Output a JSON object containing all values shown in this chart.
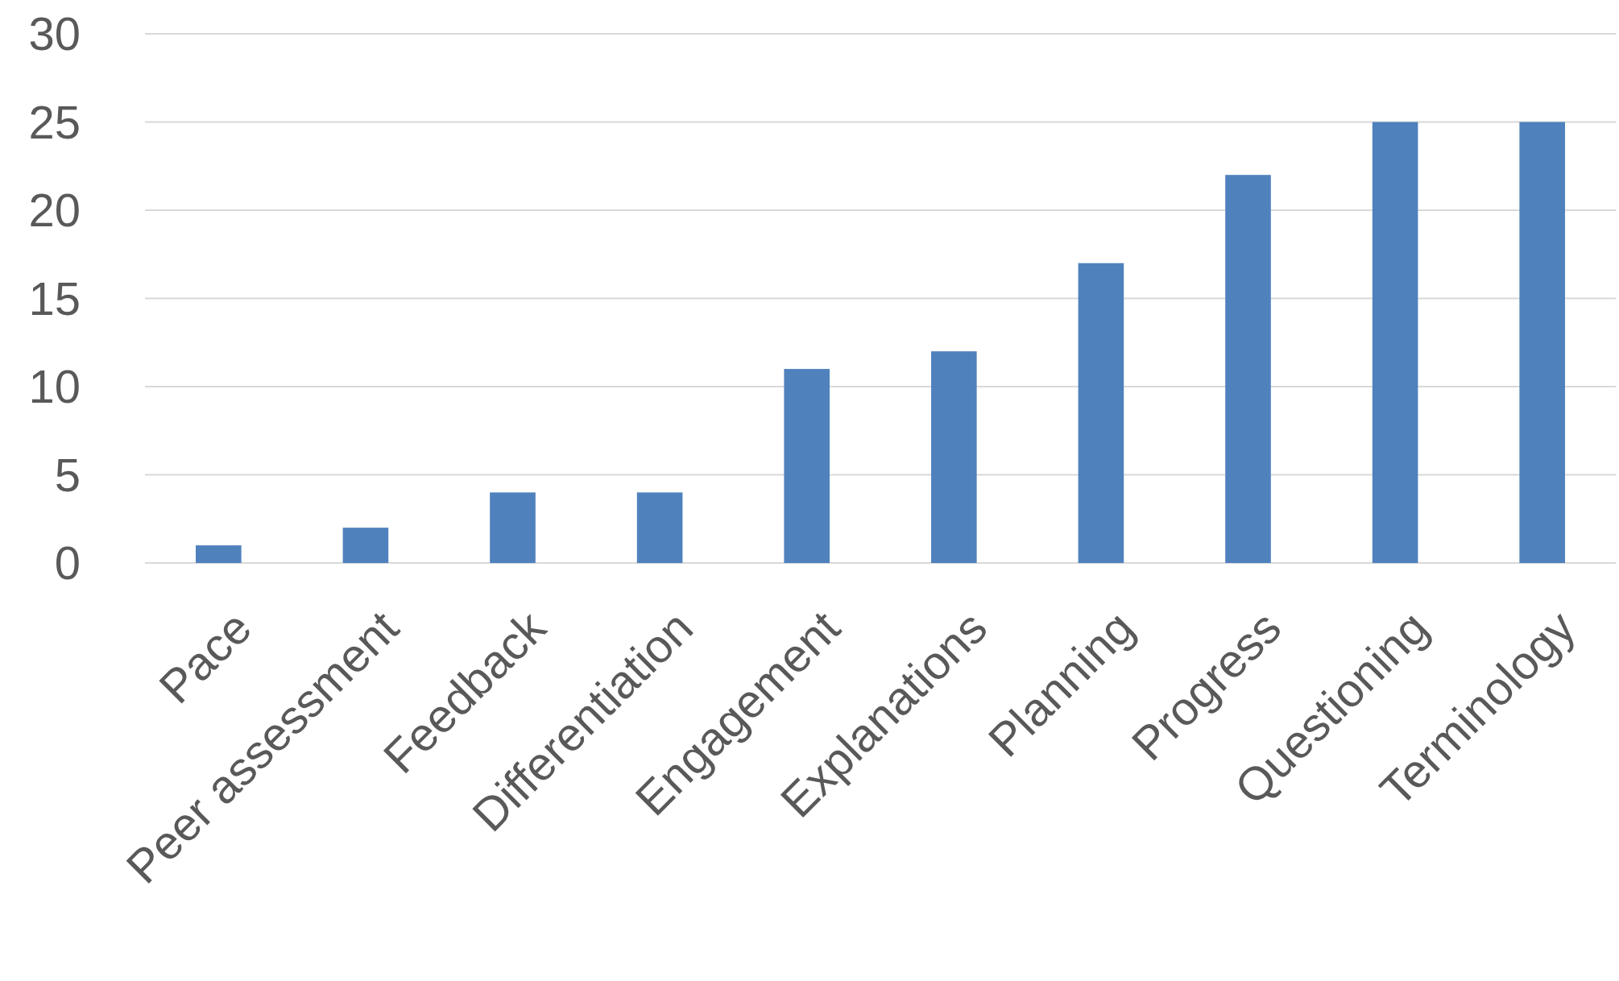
{
  "chart_data": {
    "type": "bar",
    "categories": [
      "Pace",
      "Peer assessment",
      "Feedback",
      "Differentiation",
      "Engagement",
      "Explanations",
      "Planning",
      "Progress",
      "Questioning",
      "Terminology"
    ],
    "values": [
      1,
      2,
      4,
      4,
      11,
      12,
      17,
      22,
      25,
      25
    ],
    "color": "#4f81bd",
    "ylim": [
      0,
      30
    ],
    "yticks": [
      0,
      5,
      10,
      15,
      20,
      25,
      30
    ],
    "grid": "y"
  }
}
